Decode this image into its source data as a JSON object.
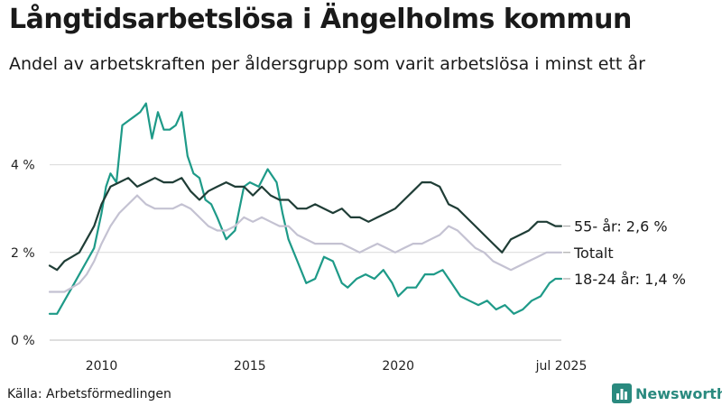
{
  "title": "Långtidsarbetslösa i Ängelholms kommun",
  "subtitle": "Andel av arbetskraften per åldersgrupp som varit arbetslösa i minst ett år",
  "source": "Källa: Arbetsförmedlingen",
  "logo_text": "Newsworthy",
  "logo_icon": "bar-chart-icon",
  "colors": {
    "series_55": "#1f3d36",
    "series_total": "#c4c2d2",
    "series_18_24": "#1e9a88",
    "grid": "#d9d9d9",
    "brand": "#2a8a7f"
  },
  "chart_data": {
    "type": "line",
    "x_unit": "year",
    "xlim": [
      2008.25,
      2025.5
    ],
    "ylim": [
      0,
      5.7
    ],
    "y_ticks": [
      {
        "value": 0,
        "label": "0 %"
      },
      {
        "value": 2,
        "label": "2 %"
      },
      {
        "value": 4,
        "label": "4 %"
      }
    ],
    "x_ticks": [
      {
        "value": 2010,
        "label": "2010"
      },
      {
        "value": 2015,
        "label": "2015"
      },
      {
        "value": 2020,
        "label": "2020"
      },
      {
        "value": 2025.5,
        "label": "jul 2025"
      }
    ],
    "grid": "horizontal",
    "series": [
      {
        "key": "series_18_24",
        "end_label": "18-24 år: 1,4 %",
        "x": [
          2008.25,
          2008.5,
          2008.75,
          2009.0,
          2009.25,
          2009.5,
          2009.75,
          2010.0,
          2010.15,
          2010.3,
          2010.5,
          2010.7,
          2010.9,
          2011.1,
          2011.3,
          2011.5,
          2011.7,
          2011.9,
          2012.1,
          2012.3,
          2012.5,
          2012.7,
          2012.9,
          2013.1,
          2013.3,
          2013.5,
          2013.7,
          2013.9,
          2014.2,
          2014.5,
          2014.8,
          2015.0,
          2015.3,
          2015.6,
          2015.9,
          2016.1,
          2016.3,
          2016.6,
          2016.9,
          2017.2,
          2017.5,
          2017.8,
          2018.1,
          2018.3,
          2018.6,
          2018.9,
          2019.2,
          2019.5,
          2019.8,
          2020.0,
          2020.3,
          2020.6,
          2020.9,
          2021.2,
          2021.5,
          2021.8,
          2022.1,
          2022.4,
          2022.7,
          2023.0,
          2023.3,
          2023.6,
          2023.9,
          2024.2,
          2024.5,
          2024.8,
          2025.1,
          2025.3,
          2025.5
        ],
        "values": [
          0.6,
          0.6,
          0.9,
          1.2,
          1.5,
          1.8,
          2.1,
          2.9,
          3.5,
          3.8,
          3.6,
          4.9,
          5.0,
          5.1,
          5.2,
          5.4,
          4.6,
          5.2,
          4.8,
          4.8,
          4.9,
          5.2,
          4.2,
          3.8,
          3.7,
          3.2,
          3.1,
          2.8,
          2.3,
          2.5,
          3.5,
          3.6,
          3.5,
          3.9,
          3.6,
          2.9,
          2.3,
          1.8,
          1.3,
          1.4,
          1.9,
          1.8,
          1.3,
          1.2,
          1.4,
          1.5,
          1.4,
          1.6,
          1.3,
          1.0,
          1.2,
          1.2,
          1.5,
          1.5,
          1.6,
          1.3,
          1.0,
          0.9,
          0.8,
          0.9,
          0.7,
          0.8,
          0.6,
          0.7,
          0.9,
          1.0,
          1.3,
          1.4,
          1.4
        ]
      },
      {
        "key": "series_total",
        "end_label": "Totalt",
        "x": [
          2008.25,
          2008.5,
          2008.75,
          2009.0,
          2009.25,
          2009.5,
          2009.75,
          2010.0,
          2010.3,
          2010.6,
          2010.9,
          2011.2,
          2011.5,
          2011.8,
          2012.1,
          2012.4,
          2012.7,
          2013.0,
          2013.3,
          2013.6,
          2013.9,
          2014.2,
          2014.5,
          2014.8,
          2015.1,
          2015.4,
          2015.7,
          2016.0,
          2016.3,
          2016.6,
          2016.9,
          2017.2,
          2017.5,
          2017.8,
          2018.1,
          2018.4,
          2018.7,
          2019.0,
          2019.3,
          2019.6,
          2019.9,
          2020.2,
          2020.5,
          2020.8,
          2021.1,
          2021.4,
          2021.7,
          2022.0,
          2022.3,
          2022.6,
          2022.9,
          2023.2,
          2023.5,
          2023.8,
          2024.1,
          2024.4,
          2024.7,
          2025.0,
          2025.3,
          2025.5
        ],
        "values": [
          1.1,
          1.1,
          1.1,
          1.2,
          1.3,
          1.5,
          1.8,
          2.2,
          2.6,
          2.9,
          3.1,
          3.3,
          3.1,
          3.0,
          3.0,
          3.0,
          3.1,
          3.0,
          2.8,
          2.6,
          2.5,
          2.5,
          2.6,
          2.8,
          2.7,
          2.8,
          2.7,
          2.6,
          2.6,
          2.4,
          2.3,
          2.2,
          2.2,
          2.2,
          2.2,
          2.1,
          2.0,
          2.1,
          2.2,
          2.1,
          2.0,
          2.1,
          2.2,
          2.2,
          2.3,
          2.4,
          2.6,
          2.5,
          2.3,
          2.1,
          2.0,
          1.8,
          1.7,
          1.6,
          1.7,
          1.8,
          1.9,
          2.0,
          2.0,
          2.0
        ]
      },
      {
        "key": "series_55",
        "end_label": "55- år: 2,6 %",
        "x": [
          2008.25,
          2008.5,
          2008.75,
          2009.0,
          2009.25,
          2009.5,
          2009.75,
          2010.0,
          2010.3,
          2010.6,
          2010.9,
          2011.2,
          2011.5,
          2011.8,
          2012.1,
          2012.4,
          2012.7,
          2013.0,
          2013.3,
          2013.6,
          2013.9,
          2014.2,
          2014.5,
          2014.8,
          2015.1,
          2015.4,
          2015.7,
          2016.0,
          2016.3,
          2016.6,
          2016.9,
          2017.2,
          2017.5,
          2017.8,
          2018.1,
          2018.4,
          2018.7,
          2019.0,
          2019.3,
          2019.6,
          2019.9,
          2020.2,
          2020.5,
          2020.8,
          2021.1,
          2021.4,
          2021.7,
          2022.0,
          2022.3,
          2022.6,
          2022.9,
          2023.2,
          2023.5,
          2023.8,
          2024.1,
          2024.4,
          2024.7,
          2025.0,
          2025.3,
          2025.5
        ],
        "values": [
          1.7,
          1.6,
          1.8,
          1.9,
          2.0,
          2.3,
          2.6,
          3.1,
          3.5,
          3.6,
          3.7,
          3.5,
          3.6,
          3.7,
          3.6,
          3.6,
          3.7,
          3.4,
          3.2,
          3.4,
          3.5,
          3.6,
          3.5,
          3.5,
          3.3,
          3.5,
          3.3,
          3.2,
          3.2,
          3.0,
          3.0,
          3.1,
          3.0,
          2.9,
          3.0,
          2.8,
          2.8,
          2.7,
          2.8,
          2.9,
          3.0,
          3.2,
          3.4,
          3.6,
          3.6,
          3.5,
          3.1,
          3.0,
          2.8,
          2.6,
          2.4,
          2.2,
          2.0,
          2.3,
          2.4,
          2.5,
          2.7,
          2.7,
          2.6,
          2.6
        ]
      }
    ]
  }
}
